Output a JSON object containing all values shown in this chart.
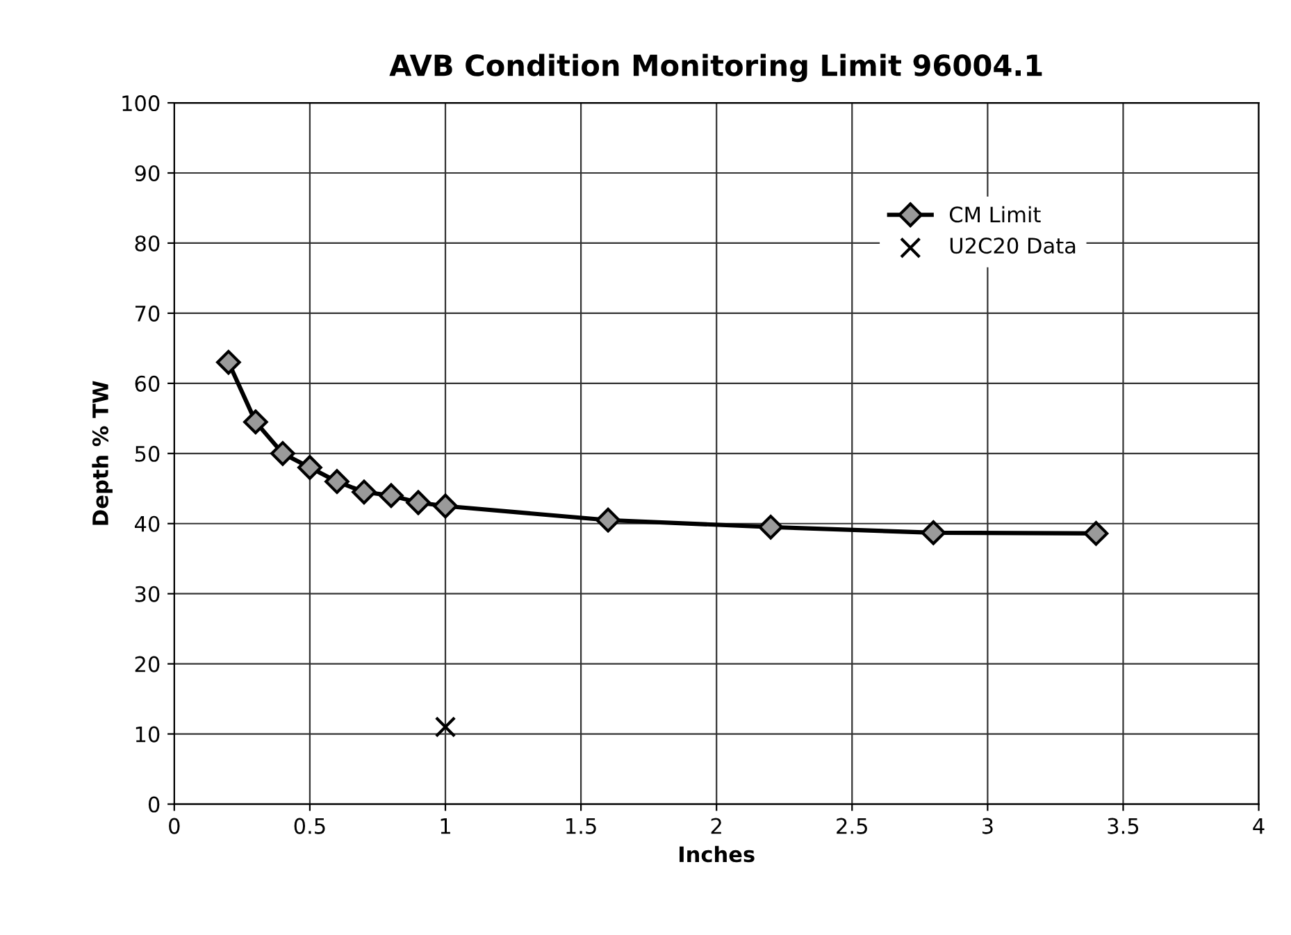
{
  "chart_data": {
    "type": "line",
    "title": "AVB Condition Monitoring Limit 96004.1",
    "xlabel": "Inches",
    "ylabel": "Depth % TW",
    "series": [
      {
        "name": "CM Limit",
        "marker": "diamond",
        "color": "#000000",
        "x": [
          0.2,
          0.3,
          0.4,
          0.5,
          0.6,
          0.7,
          0.8,
          0.9,
          1.0,
          1.6,
          2.2,
          2.8,
          3.4
        ],
        "values": [
          63,
          54.5,
          50,
          48,
          46,
          44.5,
          44,
          43,
          42.5,
          40.5,
          39.5,
          38.7,
          38.6
        ]
      },
      {
        "name": "U2C20 Data",
        "type": "scatter",
        "marker": "cross",
        "color": "#000000",
        "x": [
          1.0
        ],
        "values": [
          11
        ]
      }
    ],
    "xlim": [
      0,
      4
    ],
    "xticks": [
      0,
      0.5,
      1,
      1.5,
      2,
      2.5,
      3,
      3.5,
      4
    ],
    "ylim": [
      0,
      100
    ],
    "yticks": [
      0,
      10,
      20,
      30,
      40,
      50,
      60,
      70,
      80,
      90,
      100
    ],
    "grid": true,
    "legend": "top right"
  }
}
